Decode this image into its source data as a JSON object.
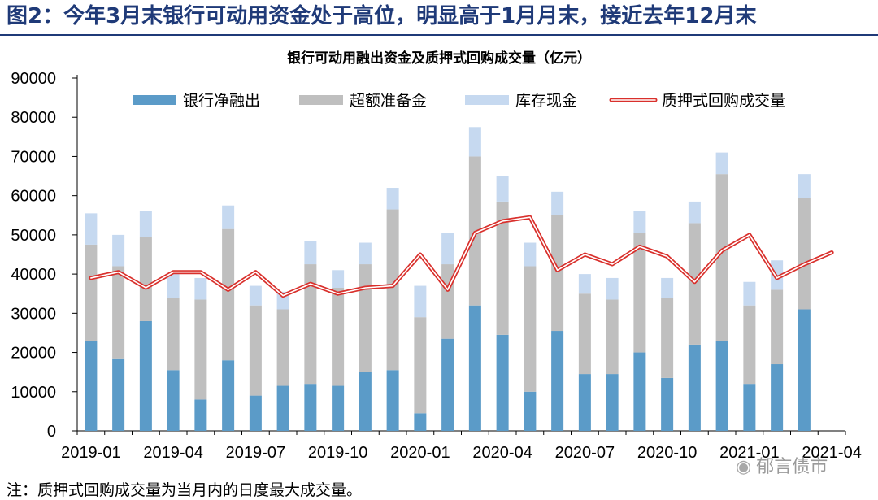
{
  "figure": {
    "title": "图2：今年3月末银行可动用资金处于高位，明显高于1月月末，接近去年12月末",
    "note": "注：质押式回购成交量为当月内的日度最大成交量。",
    "watermark": "郁言债市"
  },
  "chart_data": {
    "type": "bar",
    "stacked": true,
    "title": "银行可动用融出资金及质押式回购成交量（亿元）",
    "xlabel": "",
    "ylabel": "",
    "ylim": [
      0,
      90000
    ],
    "yticks": [
      0,
      10000,
      20000,
      30000,
      40000,
      50000,
      60000,
      70000,
      80000,
      90000
    ],
    "grid": false,
    "legend_position": "top",
    "categories": [
      "2019-01",
      "2019-02",
      "2019-03",
      "2019-04",
      "2019-05",
      "2019-06",
      "2019-07",
      "2019-08",
      "2019-09",
      "2019-10",
      "2019-11",
      "2019-12",
      "2020-01",
      "2020-02",
      "2020-03",
      "2020-04",
      "2020-05",
      "2020-06",
      "2020-07",
      "2020-08",
      "2020-09",
      "2020-10",
      "2020-11",
      "2020-12",
      "2021-01",
      "2021-02",
      "2021-03",
      "2021-04"
    ],
    "xtick_labels": [
      "2019-01",
      "2019-04",
      "2019-07",
      "2019-10",
      "2020-01",
      "2020-04",
      "2020-07",
      "2020-10",
      "2021-01",
      "2021-04"
    ],
    "series": [
      {
        "name": "银行净融出",
        "kind": "bar",
        "color": "#5b9bc8",
        "values": [
          23000,
          18500,
          28000,
          15500,
          8000,
          18000,
          9000,
          11500,
          12000,
          11500,
          15000,
          15500,
          4500,
          23500,
          32000,
          24500,
          10000,
          25500,
          14500,
          14500,
          20000,
          13500,
          22000,
          23000,
          12000,
          17000,
          31000,
          null
        ]
      },
      {
        "name": "超额准备金",
        "kind": "bar",
        "color": "#bfbfbf",
        "values": [
          24500,
          23500,
          21500,
          18500,
          25500,
          33500,
          23000,
          19500,
          30500,
          25000,
          27500,
          41000,
          24500,
          19000,
          38000,
          34000,
          32000,
          29500,
          20500,
          19000,
          30500,
          20500,
          31000,
          42500,
          20000,
          19000,
          28500,
          null
        ]
      },
      {
        "name": "库存现金",
        "kind": "bar",
        "color": "#c6d9f0",
        "values": [
          8000,
          8000,
          6500,
          6000,
          5500,
          6000,
          5000,
          4500,
          6000,
          4500,
          5500,
          5500,
          8000,
          8000,
          7500,
          6500,
          6000,
          6000,
          5000,
          5500,
          5500,
          5000,
          5500,
          5500,
          6000,
          7500,
          6000,
          null
        ]
      },
      {
        "name": "质押式回购成交量",
        "kind": "line",
        "color": "#d9302c",
        "values": [
          39000,
          40500,
          36500,
          40500,
          40500,
          36000,
          40500,
          34500,
          37500,
          35000,
          36500,
          37000,
          45000,
          36000,
          50500,
          53500,
          54500,
          41000,
          45000,
          42500,
          47000,
          44500,
          38000,
          46000,
          50000,
          39000,
          42500,
          45500
        ]
      }
    ]
  }
}
